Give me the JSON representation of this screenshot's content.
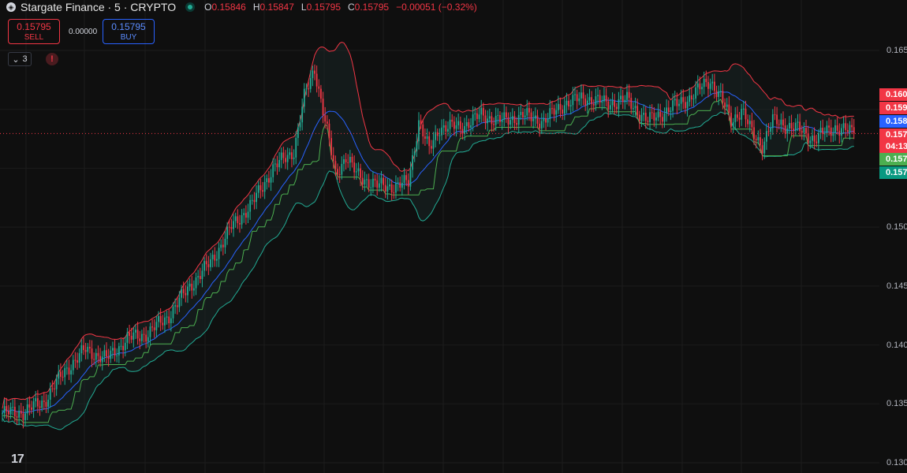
{
  "header": {
    "symbol_icon": "stargate-icon",
    "title": "Stargate Finance · 5 · CRYPTO",
    "ohlc": [
      {
        "key": "O",
        "value": "0.15846"
      },
      {
        "key": "H",
        "value": "0.15847"
      },
      {
        "key": "L",
        "value": "0.15795"
      },
      {
        "key": "C",
        "value": "0.15795"
      }
    ],
    "change": "−0.00051 (−0.32%)"
  },
  "trade": {
    "sell_price": "0.15795",
    "sell_label": "SELL",
    "spread": "0.00000",
    "buy_price": "0.15795",
    "buy_label": "BUY"
  },
  "indicators": {
    "count": "3"
  },
  "axis": {
    "ticks": [
      "0.165",
      "0.150",
      "0.145",
      "0.140",
      "0.135",
      "0.130"
    ]
  },
  "price_labels": [
    {
      "text": "0.160",
      "color": "#f23645"
    },
    {
      "text": "0.159",
      "color": "#f23645"
    },
    {
      "text": "0.158",
      "color": "#2962ff"
    },
    {
      "text": "0.157",
      "color": "#f23645"
    },
    {
      "text": "04:13",
      "color": "#f23645"
    },
    {
      "text": "0.157",
      "color": "#4caf50"
    },
    {
      "text": "0.157",
      "color": "#089981"
    }
  ],
  "colors": {
    "up": "#22ab94",
    "down": "#f23645",
    "basis": "#2962ff",
    "band_upper": "#f23645",
    "band_lower": "#22ab94",
    "green": "#4caf50"
  },
  "chart_data": {
    "type": "candlestick",
    "ylim": [
      0.13,
      0.166
    ],
    "last_price": 0.15795,
    "close_anchors": [
      [
        0,
        0.1342
      ],
      [
        10,
        0.1343
      ],
      [
        20,
        0.1352
      ],
      [
        30,
        0.1378
      ],
      [
        40,
        0.1396
      ],
      [
        50,
        0.1388
      ],
      [
        60,
        0.1405
      ],
      [
        70,
        0.141
      ],
      [
        80,
        0.1425
      ],
      [
        90,
        0.145
      ],
      [
        100,
        0.147
      ],
      [
        110,
        0.15
      ],
      [
        120,
        0.152
      ],
      [
        130,
        0.155
      ],
      [
        140,
        0.1565
      ],
      [
        145,
        0.161
      ],
      [
        150,
        0.1635
      ],
      [
        155,
        0.159
      ],
      [
        160,
        0.1545
      ],
      [
        165,
        0.156
      ],
      [
        170,
        0.1545
      ],
      [
        180,
        0.1535
      ],
      [
        190,
        0.1535
      ],
      [
        195,
        0.1538
      ],
      [
        200,
        0.159
      ],
      [
        205,
        0.1565
      ],
      [
        210,
        0.1585
      ],
      [
        220,
        0.1585
      ],
      [
        230,
        0.1595
      ],
      [
        240,
        0.159
      ],
      [
        250,
        0.1595
      ],
      [
        260,
        0.159
      ],
      [
        270,
        0.1605
      ],
      [
        280,
        0.161
      ],
      [
        290,
        0.1605
      ],
      [
        300,
        0.1608
      ],
      [
        310,
        0.159
      ],
      [
        320,
        0.16
      ],
      [
        330,
        0.161
      ],
      [
        340,
        0.1625
      ],
      [
        345,
        0.161
      ],
      [
        350,
        0.159
      ],
      [
        355,
        0.16
      ],
      [
        360,
        0.158
      ],
      [
        365,
        0.157
      ],
      [
        370,
        0.159
      ],
      [
        380,
        0.1585
      ],
      [
        390,
        0.1575
      ],
      [
        400,
        0.1585
      ],
      [
        405,
        0.1582
      ],
      [
        409,
        0.158
      ]
    ]
  }
}
